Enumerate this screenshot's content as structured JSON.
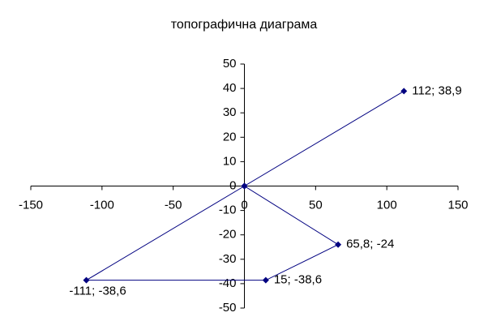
{
  "chart_data": {
    "type": "scatter-line",
    "title": "топографична диаграма",
    "series": [
      {
        "color": "#000080",
        "x": [
          0,
          112,
          0,
          65.8,
          15,
          -111,
          0
        ],
        "values": [
          0,
          38.9,
          0,
          -24,
          -38.6,
          -38.6,
          0
        ],
        "value_labels": [
          null,
          "112; 38,9",
          null,
          "65,8; -24",
          "15; -38,6",
          "-111; -38,6",
          null
        ]
      }
    ],
    "xlim": [
      -150,
      150
    ],
    "xticks": [
      -150,
      -100,
      -50,
      0,
      50,
      100,
      150
    ],
    "ylim": [
      -50,
      50
    ],
    "yticks": [
      -50,
      -40,
      -30,
      -20,
      -10,
      0,
      10,
      20,
      30,
      40,
      50
    ],
    "grid": false
  }
}
